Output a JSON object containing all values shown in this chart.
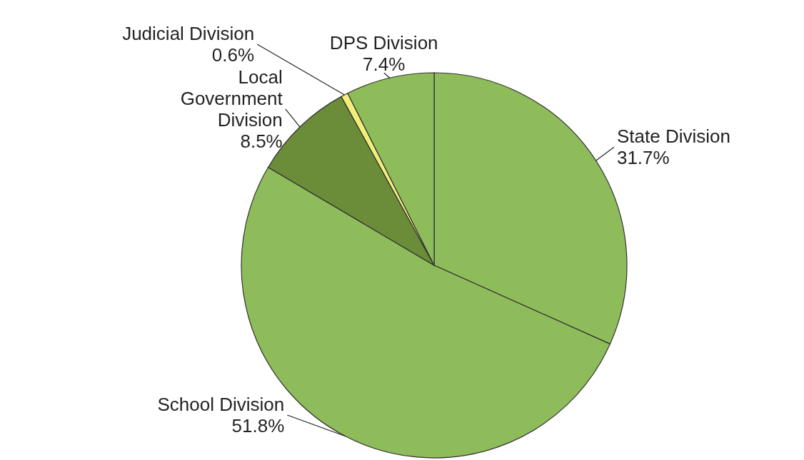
{
  "chart_data": {
    "type": "pie",
    "categories": [
      "State Division",
      "School Division",
      "Local Government Division",
      "Judicial Division",
      "DPS Division"
    ],
    "values": [
      31.7,
      51.8,
      8.5,
      0.6,
      7.4
    ],
    "value_labels": [
      "31.7%",
      "51.8%",
      "8.5%",
      "0.6%",
      "7.4%"
    ],
    "colors": [
      "#8fbc5a",
      "#8fbc5a",
      "#6b8c38",
      "#f2ee78",
      "#8fbc5a"
    ]
  }
}
